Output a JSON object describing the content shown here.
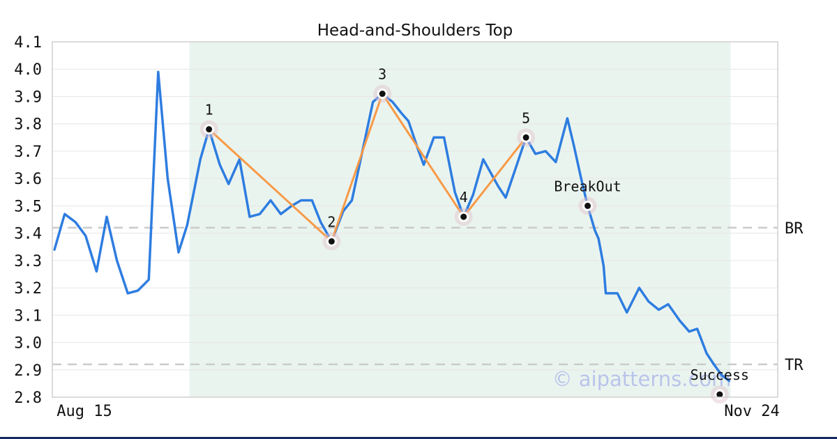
{
  "title": "Head-and-Shoulders Top",
  "watermark": "© aipatterns.com",
  "x_axis": {
    "ticks": [
      {
        "label": "Aug 15"
      },
      {
        "label": "Nov 24"
      }
    ]
  },
  "y_axis": {
    "min": 2.8,
    "max": 4.1,
    "tick_labels": [
      "4.1",
      "4.0",
      "3.9",
      "3.8",
      "3.7",
      "3.6",
      "3.5",
      "3.4",
      "3.3",
      "3.2",
      "3.1",
      "3.0",
      "2.9",
      "2.8"
    ]
  },
  "levels": [
    {
      "label": "BR",
      "value": 3.42
    },
    {
      "label": "TR",
      "value": 2.92
    }
  ],
  "colors": {
    "price_line": "#2E7DE0",
    "pattern_line": "#F79A47",
    "region_fill": "#EAF4EF",
    "grid": "#E6E6E6",
    "level_dash": "#CBCBCB",
    "frame": "#CFCFCF",
    "halo": "#E3C2CC",
    "marker_dot": "#111111",
    "text": "#111111",
    "watermark": "#9AA5E8",
    "bottom_bar": "#132A5E"
  },
  "chart_data": {
    "type": "line",
    "title": "Head-and-Shoulders Top",
    "x_range": [
      "Aug 15",
      "Nov 24"
    ],
    "ylim": [
      2.8,
      4.1
    ],
    "grid": true,
    "pattern_region": {
      "x0": 0.189,
      "x1": 0.935
    },
    "series": [
      {
        "name": "price",
        "x": [
          0.003,
          0.017,
          0.032,
          0.046,
          0.061,
          0.075,
          0.089,
          0.104,
          0.118,
          0.133,
          0.146,
          0.159,
          0.174,
          0.186,
          0.204,
          0.216,
          0.231,
          0.243,
          0.258,
          0.272,
          0.286,
          0.301,
          0.315,
          0.33,
          0.343,
          0.358,
          0.37,
          0.385,
          0.401,
          0.413,
          0.442,
          0.455,
          0.469,
          0.481,
          0.491,
          0.505,
          0.512,
          0.526,
          0.54,
          0.555,
          0.567,
          0.58,
          0.594,
          0.615,
          0.625,
          0.639,
          0.653,
          0.666,
          0.68,
          0.694,
          0.71,
          0.719,
          0.729,
          0.738,
          0.748,
          0.753,
          0.76,
          0.763,
          0.779,
          0.792,
          0.809,
          0.822,
          0.836,
          0.849,
          0.865,
          0.878,
          0.889,
          0.902,
          0.912,
          0.923,
          0.933
        ],
        "y": [
          3.34,
          3.47,
          3.44,
          3.39,
          3.26,
          3.46,
          3.3,
          3.18,
          3.19,
          3.23,
          3.99,
          3.6,
          3.33,
          3.43,
          3.67,
          3.78,
          3.65,
          3.58,
          3.67,
          3.46,
          3.47,
          3.52,
          3.47,
          3.5,
          3.52,
          3.52,
          3.44,
          3.37,
          3.48,
          3.52,
          3.88,
          3.91,
          3.88,
          3.84,
          3.81,
          3.7,
          3.65,
          3.75,
          3.75,
          3.55,
          3.46,
          3.54,
          3.67,
          3.57,
          3.53,
          3.64,
          3.75,
          3.69,
          3.7,
          3.66,
          3.82,
          3.72,
          3.6,
          3.5,
          3.41,
          3.38,
          3.28,
          3.18,
          3.18,
          3.11,
          3.2,
          3.15,
          3.12,
          3.14,
          3.08,
          3.04,
          3.05,
          2.96,
          2.92,
          2.88,
          2.86
        ]
      },
      {
        "name": "pattern-outline",
        "x": [
          0.216,
          0.385,
          0.455,
          0.567,
          0.653
        ],
        "y": [
          3.78,
          3.37,
          3.91,
          3.46,
          3.75
        ]
      }
    ],
    "annotations": [
      {
        "label": "1",
        "x": 0.216,
        "y": 3.78
      },
      {
        "label": "2",
        "x": 0.385,
        "y": 3.37
      },
      {
        "label": "3",
        "x": 0.455,
        "y": 3.91
      },
      {
        "label": "4",
        "x": 0.567,
        "y": 3.46
      },
      {
        "label": "5",
        "x": 0.653,
        "y": 3.75
      },
      {
        "label": "BreakOut",
        "x": 0.738,
        "y": 3.5
      },
      {
        "label": "Success",
        "x": 0.92,
        "y": 2.81
      }
    ]
  }
}
